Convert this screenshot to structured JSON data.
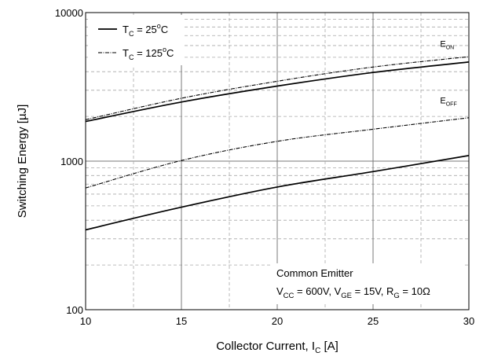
{
  "chart_data": {
    "type": "line",
    "xlabel": {
      "main": "Collector Current, I",
      "sub": "C",
      "unit": " [A]"
    },
    "ylabel": "Switching Energy [µJ]",
    "xlim": [
      10,
      30
    ],
    "ylim": [
      100,
      10000
    ],
    "yscale": "log",
    "xticks": [
      10,
      15,
      20,
      25,
      30
    ],
    "yticks": [
      100,
      1000,
      10000
    ],
    "grid": true,
    "legend": {
      "position": "top-left",
      "entries": [
        {
          "prefix": "T",
          "sub": "C",
          "mid": " = 25",
          "sup": "o",
          "suffix": "C",
          "style": "solid"
        },
        {
          "prefix": "T",
          "sub": "C",
          "mid": " = 125",
          "sup": "o",
          "suffix": "C",
          "style": "dashdot"
        }
      ]
    },
    "series": [
      {
        "label": "E_ON",
        "temperature": "25",
        "style": "solid",
        "x": [
          10,
          15,
          20,
          25,
          30
        ],
        "y": [
          1850,
          2500,
          3200,
          3950,
          4650
        ]
      },
      {
        "label": "E_ON",
        "temperature": "125",
        "style": "dashdot",
        "x": [
          10,
          15,
          20,
          25,
          30
        ],
        "y": [
          1900,
          2650,
          3450,
          4300,
          5050
        ]
      },
      {
        "label": "E_OFF",
        "temperature": "25",
        "style": "solid",
        "x": [
          10,
          15,
          20,
          25,
          30
        ],
        "y": [
          345,
          490,
          670,
          850,
          1090
        ]
      },
      {
        "label": "E_OFF",
        "temperature": "125",
        "style": "dashdot",
        "x": [
          10,
          15,
          20,
          25,
          30
        ],
        "y": [
          660,
          1010,
          1360,
          1640,
          1960
        ]
      }
    ],
    "curve_labels": [
      {
        "main": "E",
        "sub": "ON",
        "x": 28.5,
        "y": 5900
      },
      {
        "main": "E",
        "sub": "OFF",
        "x": 28.5,
        "y": 2450
      }
    ],
    "annotation": {
      "line1": "Common Emitter",
      "line2": [
        {
          "t": "V"
        },
        {
          "t": "CC",
          "sub": true
        },
        {
          "t": " = 600V, V"
        },
        {
          "t": "GE",
          "sub": true
        },
        {
          "t": " = 15V, R"
        },
        {
          "t": "G",
          "sub": true
        },
        {
          "t": " = 10Ω"
        }
      ]
    }
  }
}
